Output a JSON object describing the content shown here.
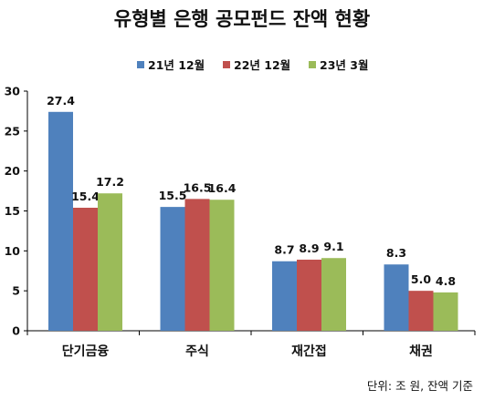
{
  "chart_data": {
    "type": "bar",
    "title": "유형별 은행 공모펀드 잔액 현황",
    "categories": [
      "단기금융",
      "주식",
      "재간접",
      "채권"
    ],
    "series": [
      {
        "name": "21년 12월",
        "color": "#4F81BD",
        "values": [
          27.4,
          15.5,
          8.7,
          8.3
        ]
      },
      {
        "name": "22년 12월",
        "color": "#C0504D",
        "values": [
          15.4,
          16.5,
          8.9,
          5.0
        ]
      },
      {
        "name": "23년 3월",
        "color": "#9BBB59",
        "values": [
          17.2,
          16.4,
          9.1,
          4.8
        ]
      }
    ],
    "ylim": [
      0,
      30
    ],
    "yticks": [
      0,
      5,
      10,
      15,
      20,
      25,
      30
    ],
    "grid": false,
    "legend_position": "top",
    "footnote": "단위: 조 원, 잔액 기준"
  }
}
